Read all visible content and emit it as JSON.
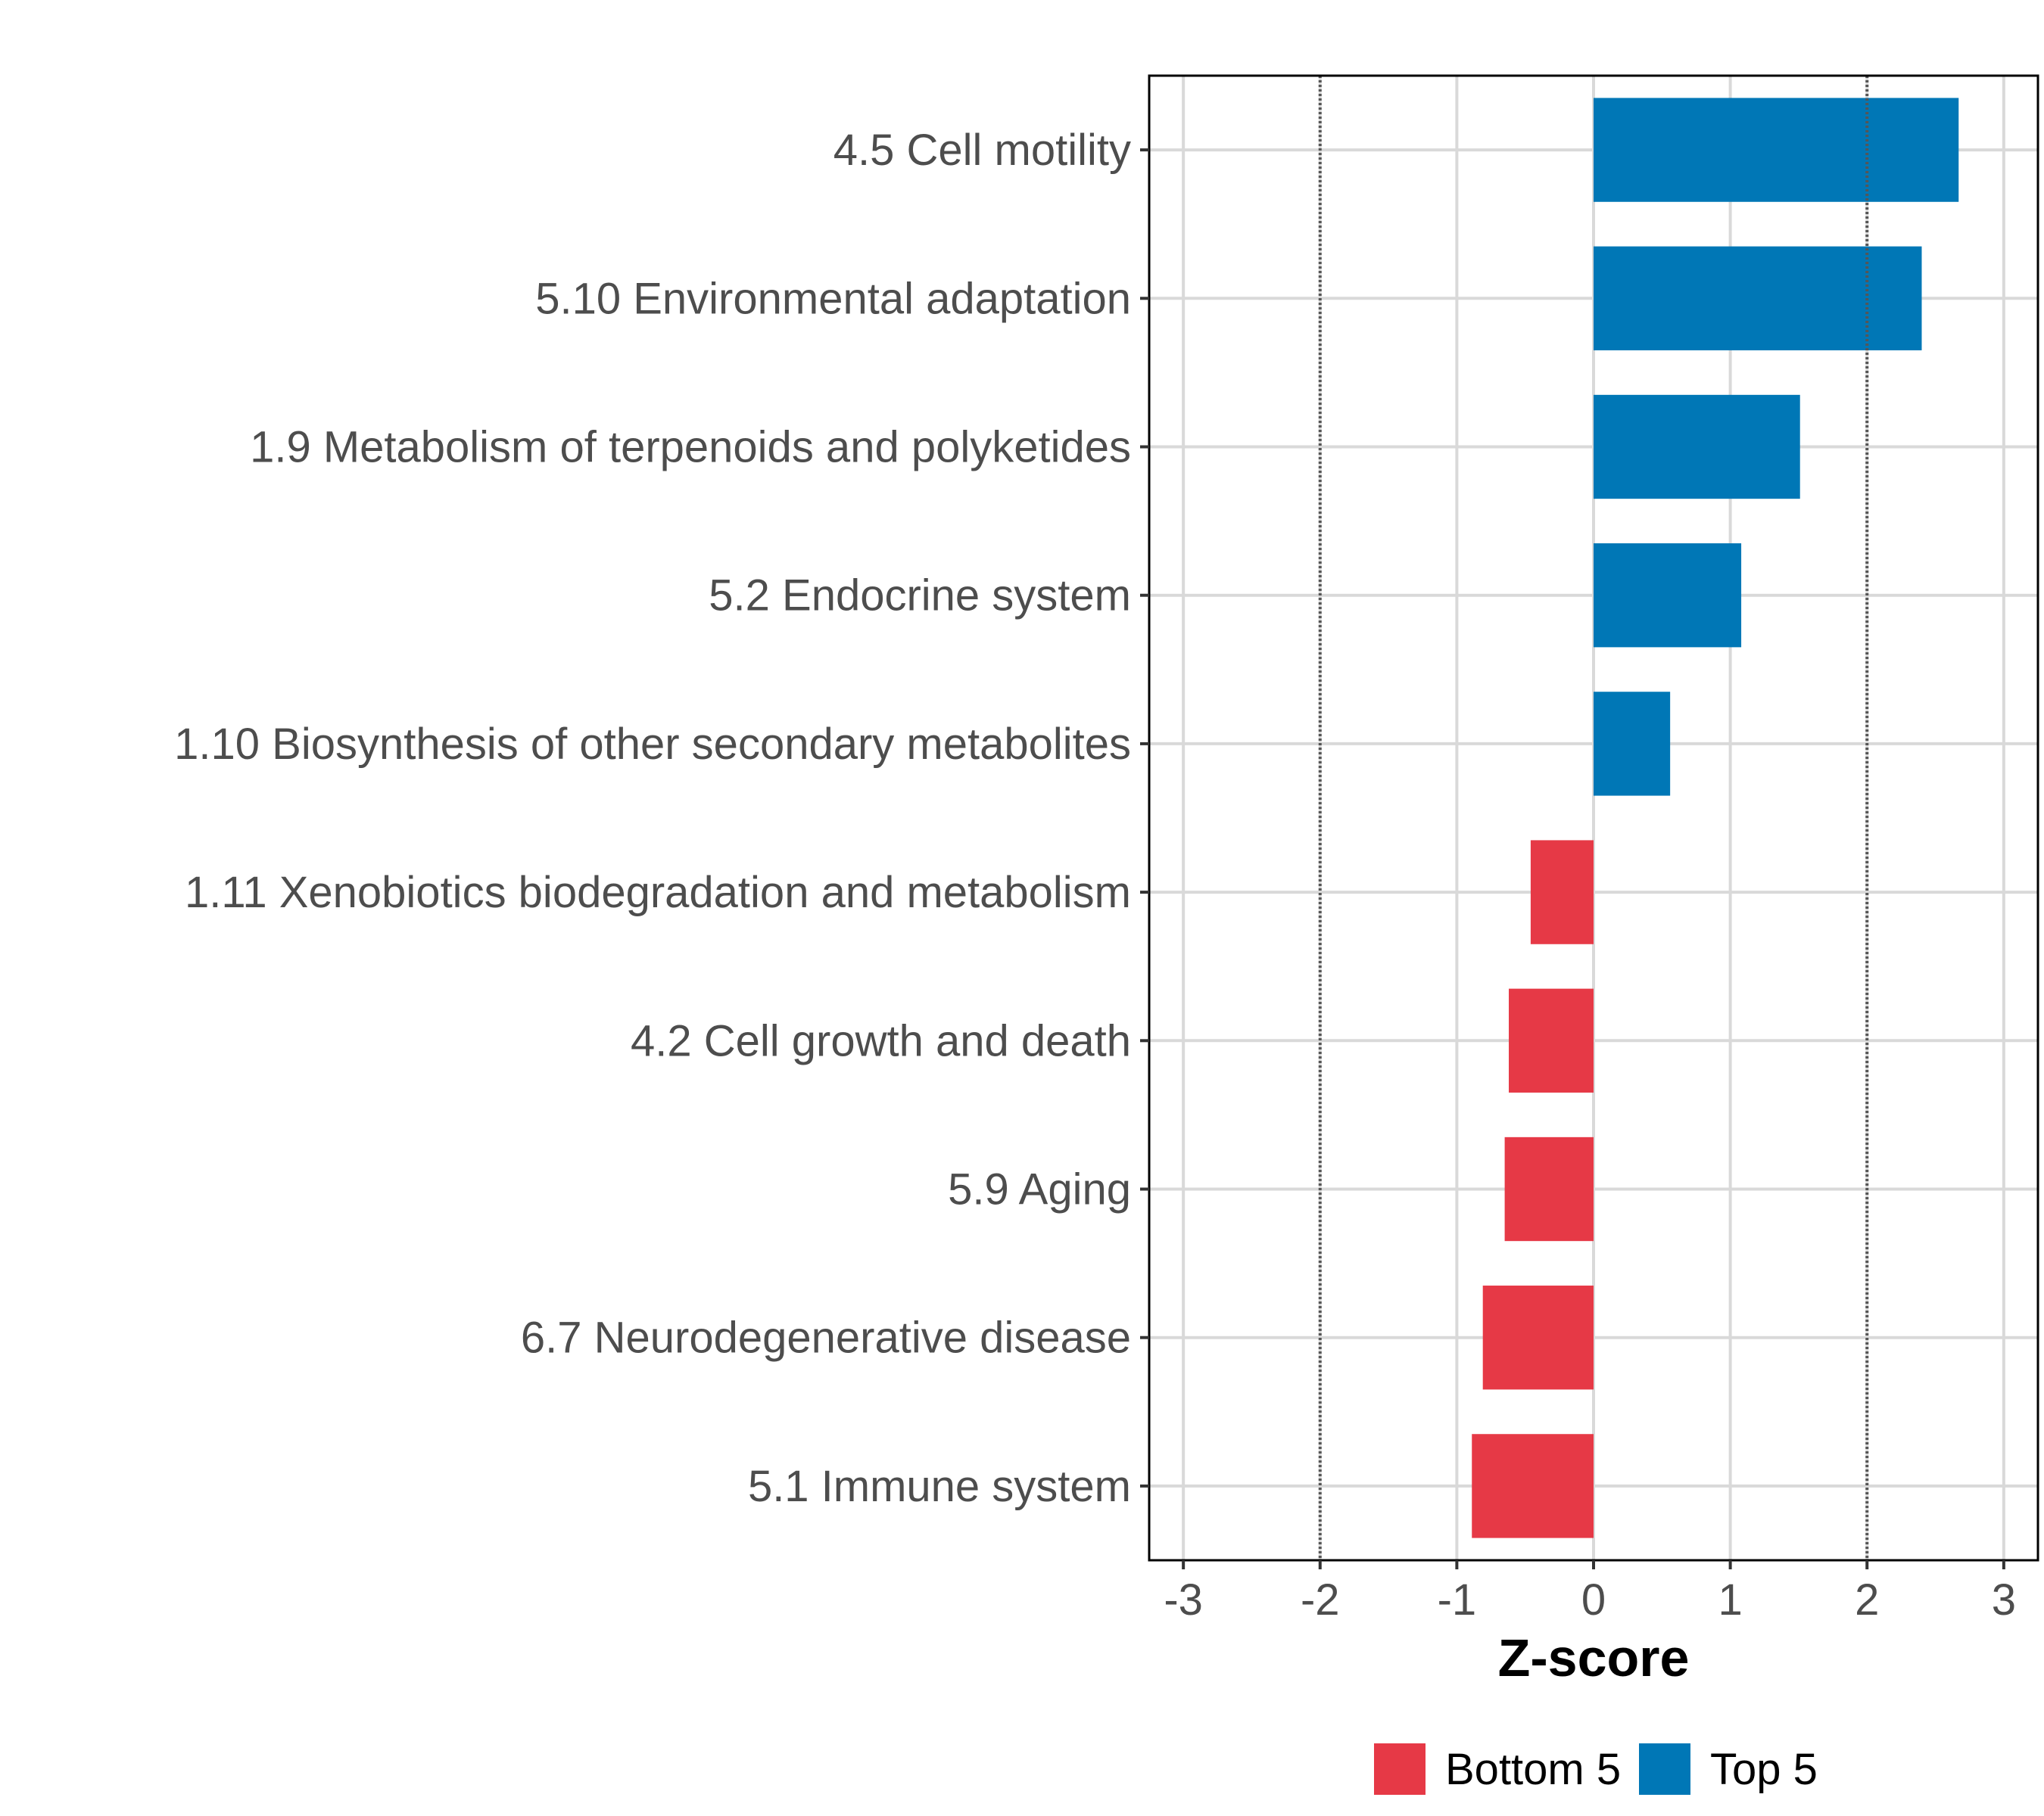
{
  "chart_data": {
    "type": "bar",
    "orientation": "horizontal",
    "title": "",
    "xlabel": "Z-score",
    "ylabel": "",
    "xlim": [
      -3.25,
      3.25
    ],
    "xticks": [
      "-3",
      "-2",
      "-1",
      "0",
      "1",
      "2",
      "3"
    ],
    "xtick_values": [
      -3,
      -2,
      -1,
      0,
      1,
      2,
      3
    ],
    "reference_lines": [
      -2,
      2
    ],
    "categories": [
      "4.5 Cell motility",
      "5.10 Environmental adaptation",
      "1.9 Metabolism of terpenoids and polyketides",
      "5.2 Endocrine system",
      "1.10 Biosynthesis of other secondary metabolites",
      "1.11 Xenobiotics biodegradation and metabolism",
      "4.2 Cell growth and death",
      "5.9 Aging",
      "6.7 Neurodegenerative disease",
      "5.1 Immune system"
    ],
    "values": [
      2.67,
      2.4,
      1.51,
      1.08,
      0.56,
      -0.46,
      -0.62,
      -0.65,
      -0.81,
      -0.89
    ],
    "groups": [
      "Top 5",
      "Top 5",
      "Top 5",
      "Top 5",
      "Top 5",
      "Bottom 5",
      "Bottom 5",
      "Bottom 5",
      "Bottom 5",
      "Bottom 5"
    ],
    "legend": [
      {
        "name": "Bottom 5",
        "color": "#e63946"
      },
      {
        "name": "Top 5",
        "color": "#0077b6"
      }
    ],
    "legend_position": "bottom",
    "grid": true
  }
}
